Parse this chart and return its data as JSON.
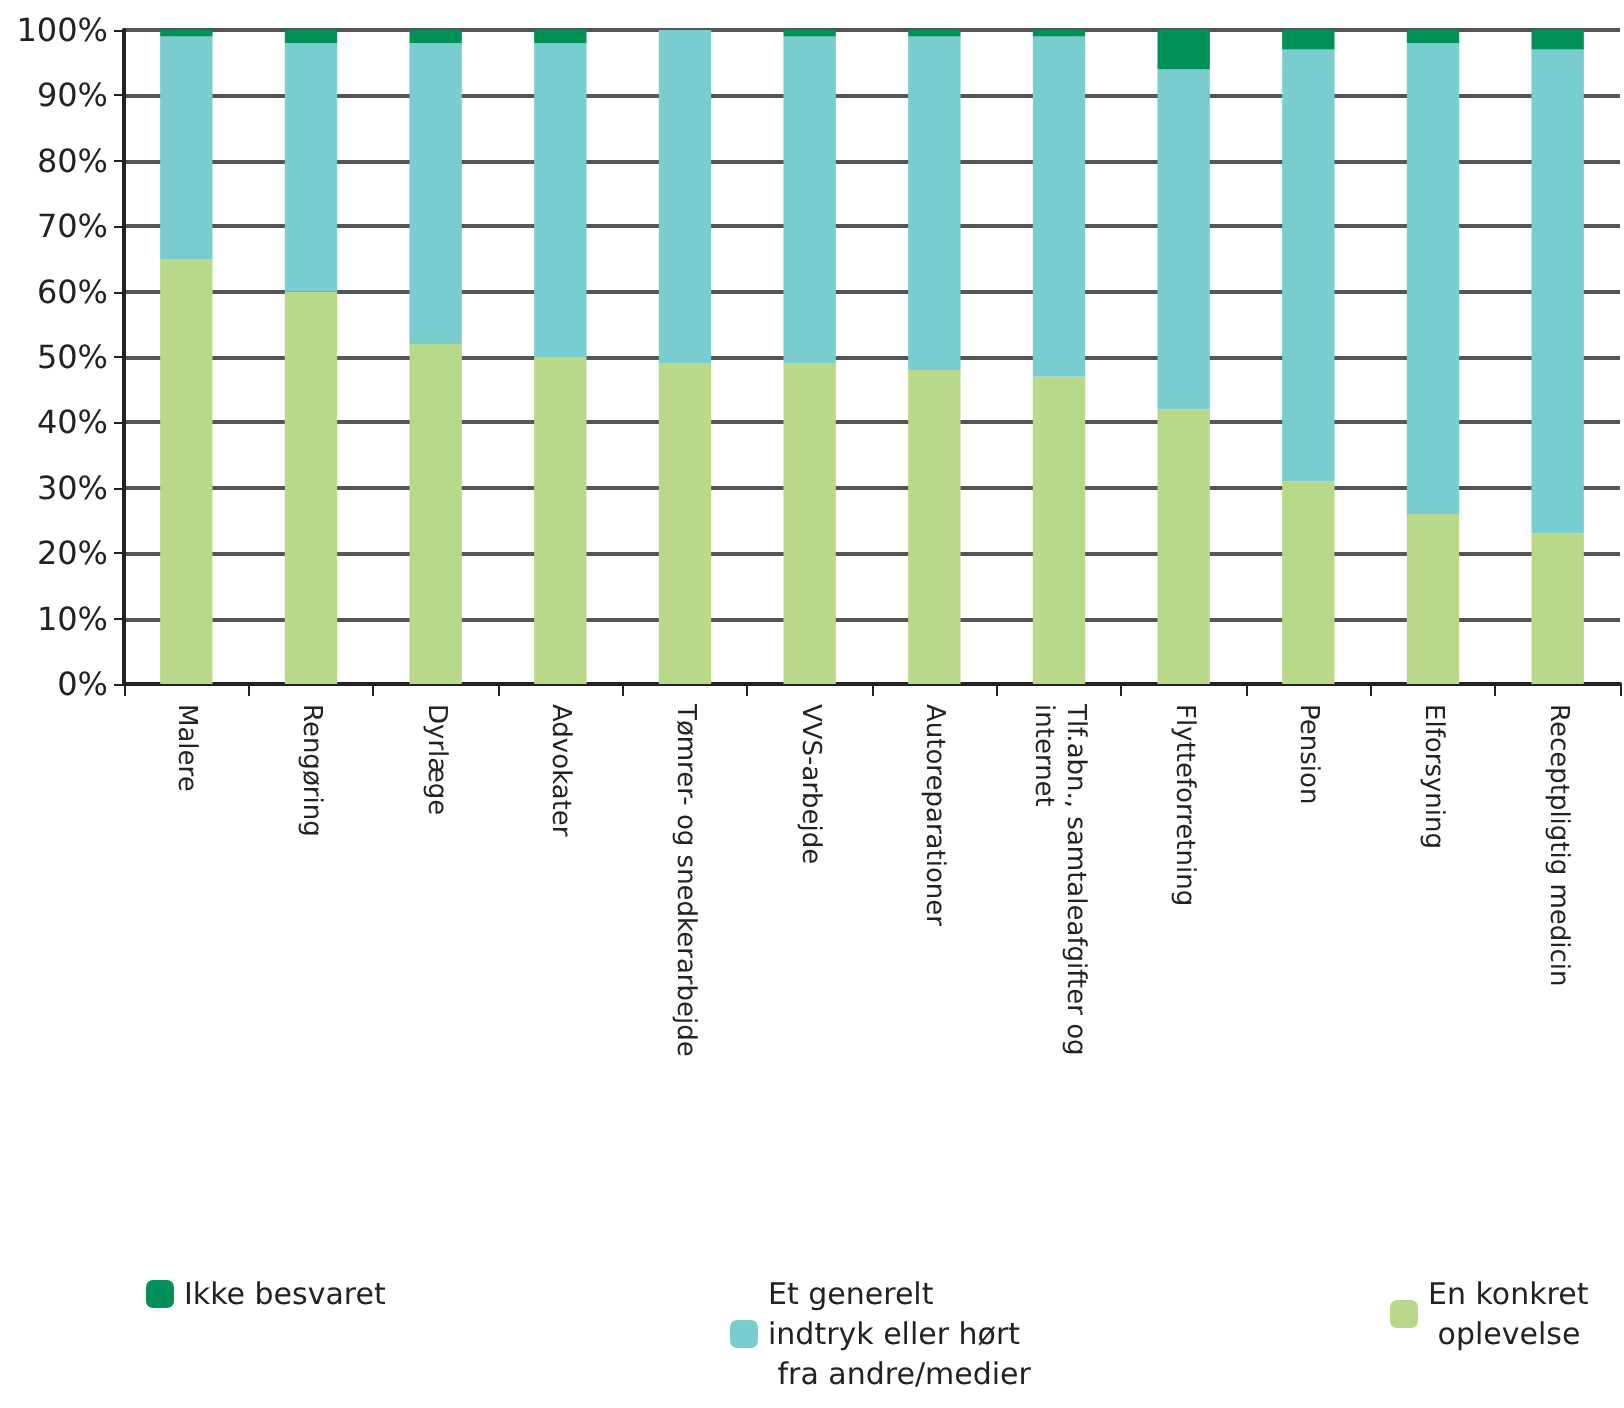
{
  "chart_data": {
    "type": "bar",
    "stacked": true,
    "categories": [
      "Malere",
      "Rengøring",
      "Dyrlæge",
      "Advokater",
      "Tømrer- og snedkerarbejde",
      "VVS-arbejde",
      "Autoreparationer",
      "Tlf.abn., samtaleafgifter og internet",
      "Flytteforretning",
      "Pension",
      "Elforsyning",
      "Receptpligtig medicin"
    ],
    "series": [
      {
        "name": "En konkret oplevelse",
        "color": "#b8d98a",
        "values": [
          65,
          60,
          52,
          50,
          49,
          49,
          48,
          47,
          42,
          31,
          26,
          23
        ]
      },
      {
        "name": "Et generelt indtryk eller hørt fra andre/medier",
        "color": "#79cdce",
        "values": [
          34,
          38,
          46,
          48,
          51,
          50,
          51,
          52,
          52,
          66,
          72,
          74
        ]
      },
      {
        "name": "Ikke besvaret",
        "color": "#009058",
        "values": [
          1,
          2,
          2,
          2,
          0,
          1,
          1,
          1,
          6,
          3,
          2,
          3
        ]
      }
    ],
    "ylim": [
      0,
      100
    ],
    "yticks": [
      {
        "value": 0,
        "label": "0%"
      },
      {
        "value": 10,
        "label": "10%"
      },
      {
        "value": 20,
        "label": "20%"
      },
      {
        "value": 30,
        "label": "30%"
      },
      {
        "value": 40,
        "label": "40%"
      },
      {
        "value": 50,
        "label": "50%"
      },
      {
        "value": 60,
        "label": "60%"
      },
      {
        "value": 70,
        "label": "70%"
      },
      {
        "value": 80,
        "label": "80%"
      },
      {
        "value": 90,
        "label": "90%"
      },
      {
        "value": 100,
        "label": "100%"
      }
    ],
    "grid": "y",
    "legend": "bottom"
  }
}
